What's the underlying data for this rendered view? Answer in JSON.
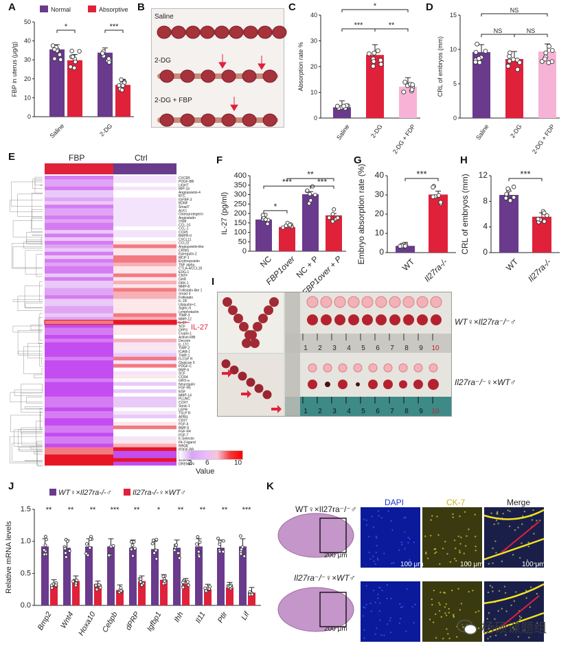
{
  "panels": {
    "A": "A",
    "B": "B",
    "C": "C",
    "D": "D",
    "E": "E",
    "F": "F",
    "G": "G",
    "H": "H",
    "I": "I",
    "J": "J",
    "K": "K"
  },
  "colors": {
    "purple": "#6a3a8c",
    "red": "#e0213a",
    "pink": "#f6b3d6",
    "lightpurple": "#c9a0e6"
  },
  "watermark": {
    "text": "杨硕课题组"
  },
  "b": {
    "rows": [
      "Saline",
      "2-DG",
      "2-DG + FBP"
    ]
  },
  "e": {
    "col_fbp": "FBP",
    "col_ctrl": "Ctrl",
    "highlight": "IL-27",
    "legend_title": "Value",
    "legend_ticks": [
      "2",
      "6",
      "10"
    ]
  },
  "i": {
    "row1": "WT♀×Il27ra⁻/⁻♂",
    "row2": "Il27ra⁻/⁻♀×WT♂",
    "ruler_ticks": [
      "1",
      "2",
      "3",
      "4",
      "5",
      "6",
      "7",
      "8",
      "9",
      "10"
    ]
  },
  "k": {
    "row1": "WT♀×Il27ra⁻/⁻♂",
    "row2": "Il27ra⁻/⁻♀×WT♂",
    "col_dapi": "DAPI",
    "col_ck7": "CK-7",
    "col_merge": "Merge",
    "scale_he": "200 μm",
    "scale": "100 μm"
  },
  "chart_data": [
    {
      "id": "A",
      "type": "bar",
      "title": "",
      "ylabel": "FBP in uterus (μg/g)",
      "ylim": [
        0,
        50
      ],
      "yticks": [
        0,
        10,
        20,
        30,
        40,
        50
      ],
      "categories": [
        "Saline",
        "2-DG"
      ],
      "series": [
        {
          "name": "Normal",
          "color": "#6a3a8c",
          "values": [
            35.5,
            33.8
          ]
        },
        {
          "name": "Absorptive",
          "color": "#e0213a",
          "values": [
            29.8,
            16.8
          ]
        }
      ],
      "significance": [
        "*",
        "***"
      ]
    },
    {
      "id": "C",
      "type": "bar",
      "ylabel": "Absorption rate %",
      "ylim": [
        0,
        40
      ],
      "yticks": [
        0,
        10,
        20,
        30,
        40
      ],
      "categories": [
        "Saline",
        "2-DG",
        "2-DG + FDP"
      ],
      "values": [
        4.2,
        24.5,
        12.2
      ],
      "colors": [
        "#6a3a8c",
        "#e0213a",
        "#f6b3d6"
      ],
      "significance": [
        "***",
        "**",
        "*"
      ]
    },
    {
      "id": "D",
      "type": "bar",
      "ylabel": "CRL of embryos (mm)",
      "ylim": [
        0,
        15
      ],
      "yticks": [
        0,
        5,
        10,
        15
      ],
      "categories": [
        "Saline",
        "2-DG",
        "2-DG + FDP"
      ],
      "values": [
        9.6,
        8.6,
        9.7
      ],
      "colors": [
        "#6a3a8c",
        "#e0213a",
        "#f6b3d6"
      ],
      "significance": [
        "NS",
        "NS",
        "NS"
      ]
    },
    {
      "id": "E",
      "type": "heatmap",
      "columns": [
        "FBP",
        "Ctrl"
      ],
      "rows": [
        "CXCR5",
        "PDGF-BB",
        "LIGHT",
        "MIP-1b",
        "Angiopoietin-4",
        "BTC",
        "IGFBP-3",
        "BDNF",
        "Smad7",
        "ALK1",
        "Osteoprotegerin",
        "Angiostatin",
        "OSM",
        "CCL-10",
        "CCL-1",
        "CCR5",
        "BMPR-II",
        "CXCL11",
        "CCL22",
        "Angiopoietin-like",
        "CRIM1",
        "Epiregulin-2",
        "MCP-1",
        "Erythropoietin",
        "TNF alpha",
        "CTLA-4/CCL18",
        "EDG-1",
        "CNTF",
        "GHR",
        "DKK-1",
        "MMP-8",
        "Follistatin-like 1",
        "Smad 4",
        "Follistatin",
        "IL-1R",
        "Ubiquitin+1",
        "Siglec-9",
        "Lymphotactin",
        "TIMP-3",
        "MMP-12",
        "IL-27",
        "SCF",
        "DPP3",
        "Crypto-1",
        "Activin RIB",
        "Decorin",
        "IL-17C",
        "TIMP-2",
        "ICAM-1",
        "TIMP-1",
        "G-CSF R",
        "Glypican 5",
        "PDGF-C",
        "BMP-6",
        "SCF",
        "CCR4",
        "GRO-a",
        "Neuregulin",
        "FGF R5",
        "EGF",
        "MMP-14",
        "PLUNC",
        "CCR7",
        "Sonic-1",
        "LEPR",
        "TSLP R",
        "APRIL",
        "CD27",
        "FGF-6",
        "BMP-5",
        "FGF R4",
        "FGF-7",
        "E-Selectin",
        "Flt-3 ligand",
        "RAGE",
        "PDGF-BB",
        "IL-1 R5",
        "IL-12",
        "EDA-A2",
        "GREMLIN"
      ]
    },
    {
      "id": "F",
      "type": "bar",
      "ylabel": "IL-27 (pg/ml)",
      "ylim": [
        0,
        400
      ],
      "yticks": [
        0,
        50,
        100,
        150,
        200,
        250,
        300,
        350,
        400
      ],
      "categories": [
        "NC",
        "FBP1over",
        "NC + P",
        "FBP1over + P"
      ],
      "values": [
        168,
        128,
        302,
        190
      ],
      "colors": [
        "#6a3a8c",
        "#e0213a",
        "#6a3a8c",
        "#e0213a"
      ],
      "significance": [
        "*",
        "***",
        "***",
        "**"
      ]
    },
    {
      "id": "G",
      "type": "bar",
      "ylabel": "Embryo absorption rate (%)",
      "ylim": [
        0,
        40
      ],
      "yticks": [
        0,
        10,
        20,
        30,
        40
      ],
      "categories": [
        "WT",
        "Il27ra-/-"
      ],
      "values": [
        3.5,
        30.2
      ],
      "colors": [
        "#6a3a8c",
        "#e0213a"
      ],
      "significance": [
        "***"
      ]
    },
    {
      "id": "H",
      "type": "bar",
      "ylabel": "CRL of embryos (mm)",
      "ylim": [
        0,
        12
      ],
      "yticks": [
        0,
        4,
        8,
        12
      ],
      "categories": [
        "WT",
        "Il27ra-/-"
      ],
      "values": [
        9.0,
        5.6
      ],
      "colors": [
        "#6a3a8c",
        "#e0213a"
      ],
      "significance": [
        "***"
      ]
    },
    {
      "id": "J",
      "type": "bar",
      "ylabel": "Relative mRNA levels",
      "ylim": [
        0,
        1.5
      ],
      "yticks": [
        0.0,
        0.5,
        1.0,
        1.5
      ],
      "categories": [
        "Bmp2",
        "Wnt4",
        "Hoxa10",
        "Cebpb",
        "dPRP",
        "Igfbp1",
        "Ihh",
        "Il11",
        "Ptlr",
        "Lif"
      ],
      "series": [
        {
          "name": "WT♀×Il27ra-/-♂",
          "color": "#6a3a8c",
          "values": [
            0.92,
            0.9,
            0.92,
            0.92,
            0.9,
            0.88,
            0.9,
            0.92,
            0.9,
            0.92
          ]
        },
        {
          "name": "Il27ra-/-♀×WT♂",
          "color": "#e0213a",
          "values": [
            0.32,
            0.38,
            0.3,
            0.24,
            0.38,
            0.4,
            0.34,
            0.25,
            0.28,
            0.2
          ]
        }
      ],
      "significance": [
        "**",
        "**",
        "**",
        "***",
        "**",
        "*",
        "**",
        "**",
        "**",
        "***"
      ]
    }
  ]
}
